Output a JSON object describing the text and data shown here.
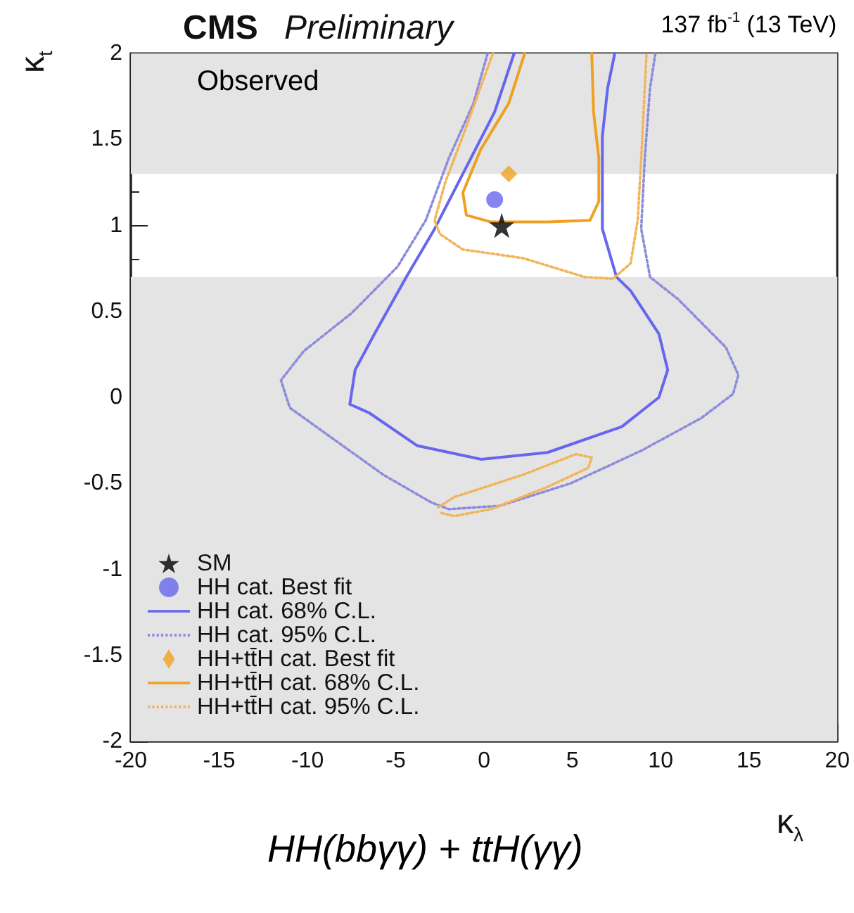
{
  "chart_data": {
    "type": "line",
    "title": "CMS",
    "subtitle": "Preliminary",
    "xlabel": "κ$_{λ}$",
    "ylabel": "κ$_{t}$",
    "annotations": [
      "137 fb$^{-1}$ (13 TeV)",
      "Observed",
      "HH(bbγγ) + ttH(γγ)"
    ],
    "xlim": [
      -20,
      20
    ],
    "xticks": [
      -20,
      -15,
      -10,
      -5,
      0,
      5,
      10,
      15,
      20
    ],
    "ylim": [
      -2,
      2
    ],
    "yticks": [
      -2,
      -1.5,
      -1,
      -0.5,
      0,
      0.5,
      1,
      1.5,
      2
    ],
    "legend": "bottom left",
    "bands": [
      {
        "axis": "y",
        "from": -2,
        "to": 0.7,
        "color": "#e4e4e4"
      },
      {
        "axis": "y",
        "from": 1.3,
        "to": 2,
        "color": "#e4e4e4"
      }
    ],
    "series": [
      {
        "name": "SM",
        "type": "scatter",
        "marker": "star",
        "color": "#000000",
        "x": [
          1
        ],
        "values": [
          1
        ]
      },
      {
        "name": "HH cat. Best fit",
        "type": "scatter",
        "marker": "circle",
        "color": "#6666ee",
        "x": [
          0.6
        ],
        "values": [
          1.15
        ]
      },
      {
        "name": "HH cat. 68% C.L.",
        "marker": "none",
        "line_style": "solid",
        "color": "#6666ee",
        "x": [
          1.7,
          0.6,
          -1.2,
          -2.8,
          -4.4,
          -6.2,
          -7.3,
          -7.6,
          -6.5,
          -3.8,
          -0.16,
          3.6,
          7.8,
          9.9,
          10.4,
          9.9,
          8.3,
          7.5,
          6.7,
          6.7,
          7.0,
          7.4
        ],
        "values": [
          2,
          1.66,
          1.3,
          0.98,
          0.7,
          0.37,
          0.16,
          -0.04,
          -0.09,
          -0.28,
          -0.36,
          -0.32,
          -0.17,
          0,
          0.16,
          0.37,
          0.62,
          0.7,
          0.98,
          1.52,
          1.8,
          2
        ]
      },
      {
        "name": "HH cat. 95% C.L.",
        "marker": "none",
        "line_style": "dotted",
        "color": "#8c8cdc",
        "x": [
          0.2,
          -0.6,
          -2.0,
          -3.3,
          -4.9,
          -7.5,
          -10.2,
          -11.5,
          -11.0,
          -9.1,
          -5.7,
          -3.0,
          -2.0,
          0.9,
          4.9,
          8.9,
          12.3,
          14.1,
          14.4,
          13.7,
          11.0,
          9.4,
          8.9,
          9.1,
          9.4,
          9.7
        ],
        "values": [
          2,
          1.71,
          1.39,
          1.03,
          0.76,
          0.49,
          0.27,
          0.1,
          -0.06,
          -0.2,
          -0.45,
          -0.61,
          -0.65,
          -0.63,
          -0.5,
          -0.31,
          -0.12,
          0.02,
          0.13,
          0.29,
          0.57,
          0.7,
          0.98,
          1.39,
          1.8,
          2
        ]
      },
      {
        "name": "HH+tt̄H cat. Best fit",
        "type": "scatter",
        "marker": "diamond",
        "color": "#f0a020",
        "x": [
          1.4
        ],
        "values": [
          1.3
        ]
      },
      {
        "name": "HH+tt̄H cat. 68% C.L.",
        "marker": "none",
        "line_style": "solid",
        "color": "#f0a020",
        "x": [
          2.3,
          1.4,
          -0.2,
          -1.2,
          -1.0,
          0.4,
          3.6,
          6.0,
          6.5,
          6.5,
          6.2,
          6.1
        ],
        "values": [
          2,
          1.71,
          1.44,
          1.19,
          1.06,
          1.02,
          1.02,
          1.03,
          1.14,
          1.39,
          1.66,
          2
        ]
      },
      {
        "name": "HH+tt̄H cat. 95% C.L.",
        "marker": "none",
        "line_style": "dotted",
        "color": "#f2b45a",
        "x": [
          0.5,
          -1.2,
          -2.2,
          -2.8,
          -2.5,
          -1.2,
          2.2,
          5.7,
          7.3,
          8.3,
          8.7,
          8.9,
          9.1,
          9.2
        ],
        "values": [
          2,
          1.52,
          1.25,
          1.03,
          0.95,
          0.86,
          0.81,
          0.7,
          0.69,
          0.78,
          1.03,
          1.39,
          1.8,
          2
        ]
      },
      {
        "marker": "none",
        "line_style": "dotted",
        "color": "#f2b45a",
        "x": [
          -2.6,
          -1.7,
          2.2,
          5.2,
          6.1,
          5.9,
          3.6,
          0.4,
          -1.7,
          -2.5
        ],
        "values": [
          -0.64,
          -0.58,
          -0.45,
          -0.33,
          -0.35,
          -0.41,
          -0.52,
          -0.65,
          -0.69,
          -0.67
        ]
      }
    ]
  }
}
